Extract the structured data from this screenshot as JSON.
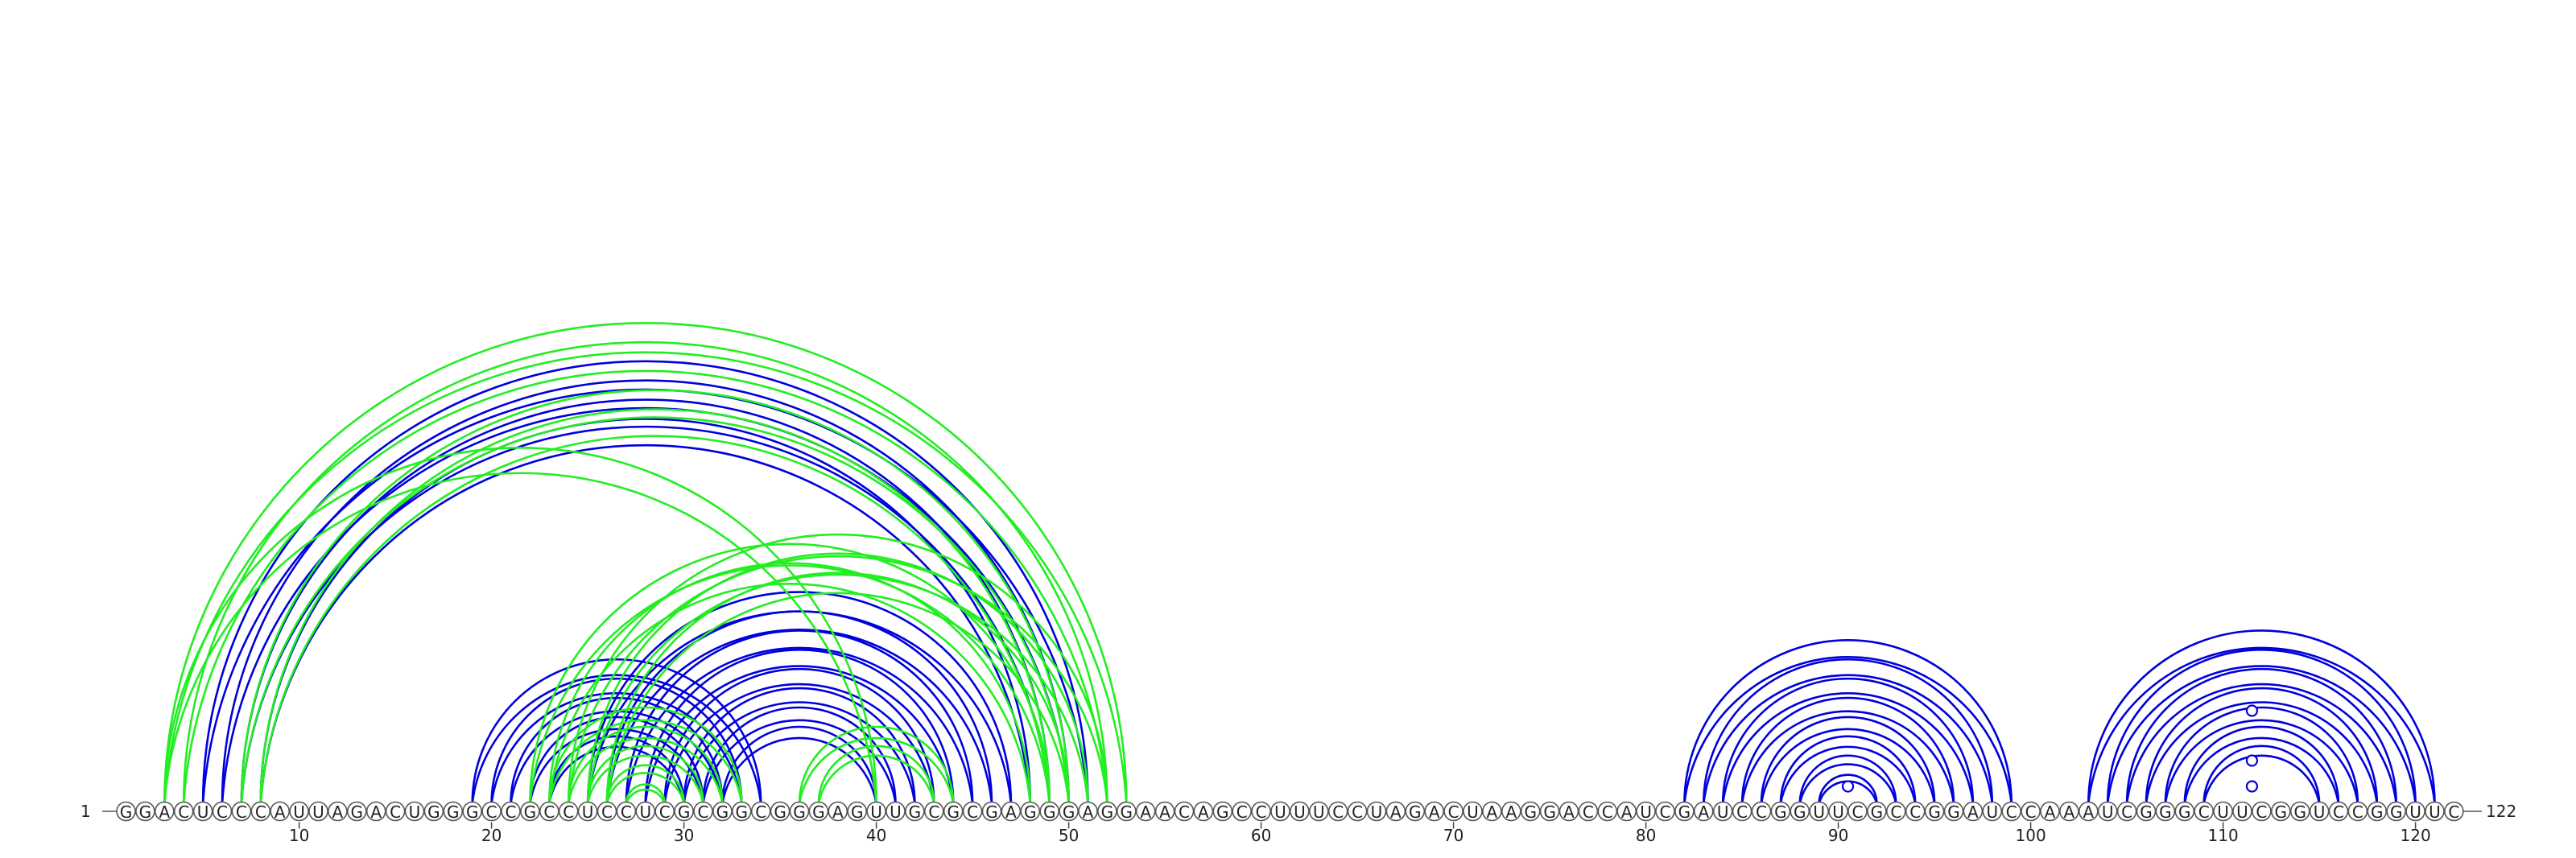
{
  "diagram": {
    "start_label": "1",
    "end_label": "122",
    "sequence": "GGACUCCCAUUAGACUGGGCCGCCUCCUCGCGGCGGGAGUUGCGCGAGGGAGGAACAGCCUUUCCUAGACUAAGGACCAUCGAUCCGGUUCGCCGGAUCCAAAUCGGGCUUCGGUCCGGUUC",
    "ticks": [
      "10",
      "20",
      "30",
      "40",
      "50",
      "60",
      "70",
      "80",
      "90",
      "100",
      "110",
      "120"
    ],
    "colors": {
      "primary": "#0000dd",
      "secondary": "#22ee22",
      "secondary_dark": "#11bb11"
    }
  },
  "chart_data": {
    "type": "arc",
    "length": 122,
    "arc_series": [
      {
        "color": "primary",
        "pairs": [
          [
            5,
            51
          ],
          [
            6,
            50
          ],
          [
            7,
            49
          ],
          [
            8,
            48
          ],
          [
            19,
            34
          ],
          [
            20,
            33
          ],
          [
            21,
            32
          ],
          [
            22,
            31
          ],
          [
            23,
            30
          ],
          [
            25,
            47
          ],
          [
            26,
            46
          ],
          [
            27,
            45
          ],
          [
            28,
            44
          ],
          [
            29,
            43
          ],
          [
            30,
            42
          ],
          [
            31,
            41
          ],
          [
            32,
            40
          ],
          [
            82,
            99
          ],
          [
            83,
            98
          ],
          [
            84,
            97
          ],
          [
            85,
            96
          ],
          [
            86,
            95
          ],
          [
            87,
            94
          ],
          [
            88,
            93
          ],
          [
            89,
            92
          ],
          [
            103,
            121
          ],
          [
            104,
            120
          ],
          [
            105,
            119
          ],
          [
            106,
            118
          ],
          [
            107,
            117
          ],
          [
            108,
            116
          ],
          [
            109,
            115
          ]
        ]
      },
      {
        "color": "secondary",
        "pairs": [
          [
            3,
            53
          ],
          [
            4,
            52
          ],
          [
            7,
            50
          ],
          [
            8,
            49
          ],
          [
            22,
            49
          ],
          [
            23,
            48
          ],
          [
            24,
            52
          ],
          [
            25,
            51
          ],
          [
            26,
            50
          ],
          [
            23,
            33
          ],
          [
            24,
            32
          ],
          [
            25,
            31
          ],
          [
            26,
            30
          ],
          [
            27,
            29
          ],
          [
            36,
            44
          ],
          [
            37,
            43
          ],
          [
            3,
            40
          ]
        ]
      }
    ],
    "markers": [
      90.5,
      111.5,
      111.5,
      111.5
    ]
  }
}
